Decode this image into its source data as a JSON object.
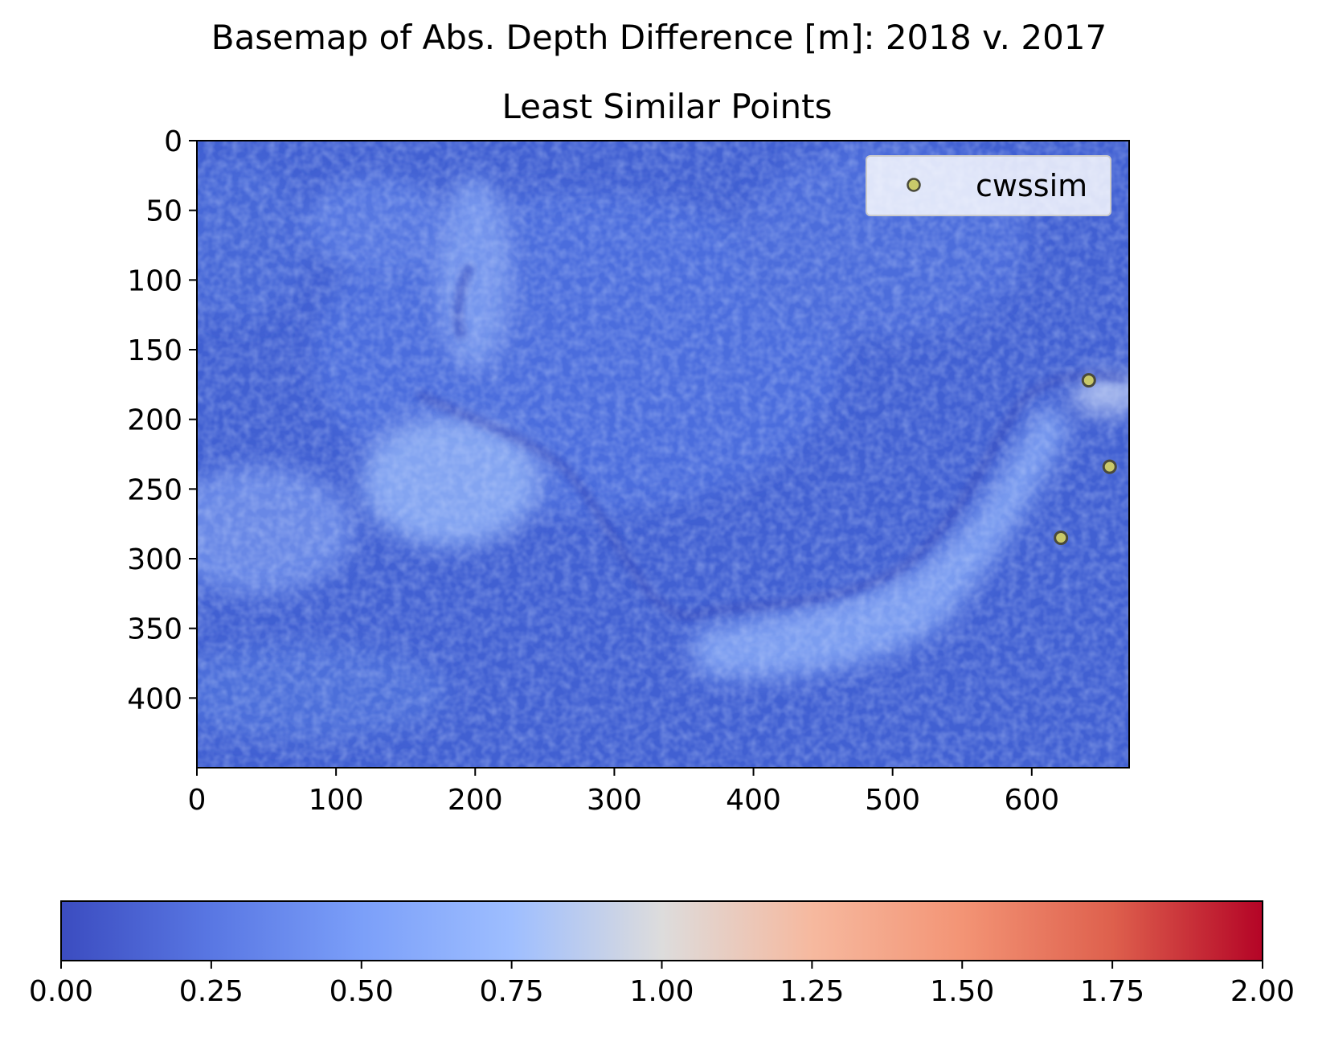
{
  "chart_data": {
    "type": "scatter",
    "title": "Basemap of Abs. Depth Difference [m]: 2018 v. 2017",
    "subtitle": "Least Similar Points",
    "background": "heatmap image (coolwarm), values mostly 0.2-0.7",
    "x_ticks": [
      0,
      100,
      200,
      300,
      400,
      500,
      600
    ],
    "y_ticks": [
      0,
      50,
      100,
      150,
      200,
      250,
      300,
      350,
      400
    ],
    "xlim": [
      0,
      670
    ],
    "ylim": [
      450,
      0
    ],
    "y_inverted": true,
    "legend": {
      "placement": "upper-right",
      "entries": [
        "cwssim"
      ]
    },
    "series": [
      {
        "name": "cwssim",
        "marker_color": "#c9c96a",
        "edge_color": "#4a4a3a",
        "points": [
          {
            "x": 641,
            "y": 172
          },
          {
            "x": 656,
            "y": 234
          },
          {
            "x": 621,
            "y": 285
          }
        ]
      }
    ],
    "colorbar": {
      "colormap": "coolwarm",
      "range": [
        0,
        2
      ],
      "tick_labels": [
        "0.00",
        "0.25",
        "0.50",
        "0.75",
        "1.00",
        "1.25",
        "1.50",
        "1.75",
        "2.00"
      ],
      "orientation": "horizontal"
    }
  }
}
